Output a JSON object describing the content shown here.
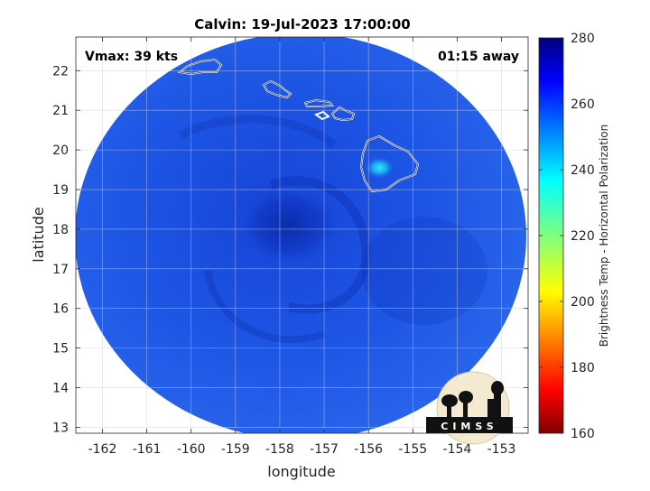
{
  "chart_data": {
    "type": "heatmap",
    "title": "Calvin: 19-Jul-2023 17:00:00",
    "xlabel": "longitude",
    "ylabel": "latitude",
    "xlim": [
      -162.6,
      -152.4
    ],
    "ylim": [
      12.85,
      22.85
    ],
    "xticks": [
      -162,
      -161,
      -160,
      -159,
      -158,
      -157,
      -156,
      -155,
      -154,
      -153
    ],
    "yticks": [
      13,
      14,
      15,
      16,
      17,
      18,
      19,
      20,
      21,
      22
    ],
    "grid": true,
    "annotations": {
      "top_left": "Vmax: 39 kts",
      "top_right": "01:15 away"
    },
    "colorbar": {
      "label": "Brightness Temp - Horizontal Polarization",
      "min": 160,
      "max": 280,
      "ticks": [
        160,
        180,
        200,
        220,
        240,
        260,
        280
      ],
      "colormap": "jet"
    },
    "field": {
      "background_value": 262,
      "storm_center": {
        "lon": -157.8,
        "lat": 18.1,
        "value": 270
      },
      "warm_spot": {
        "lon": -155.75,
        "lat": 19.55,
        "value": 238
      }
    },
    "logo_text": "CIMSS"
  },
  "colors": {
    "swath_base": "#1a4fe0",
    "swath_dark": "#0a2cb8",
    "coastline": "#ffffff",
    "grid": "#d9d9d9",
    "axis": "#262626"
  }
}
